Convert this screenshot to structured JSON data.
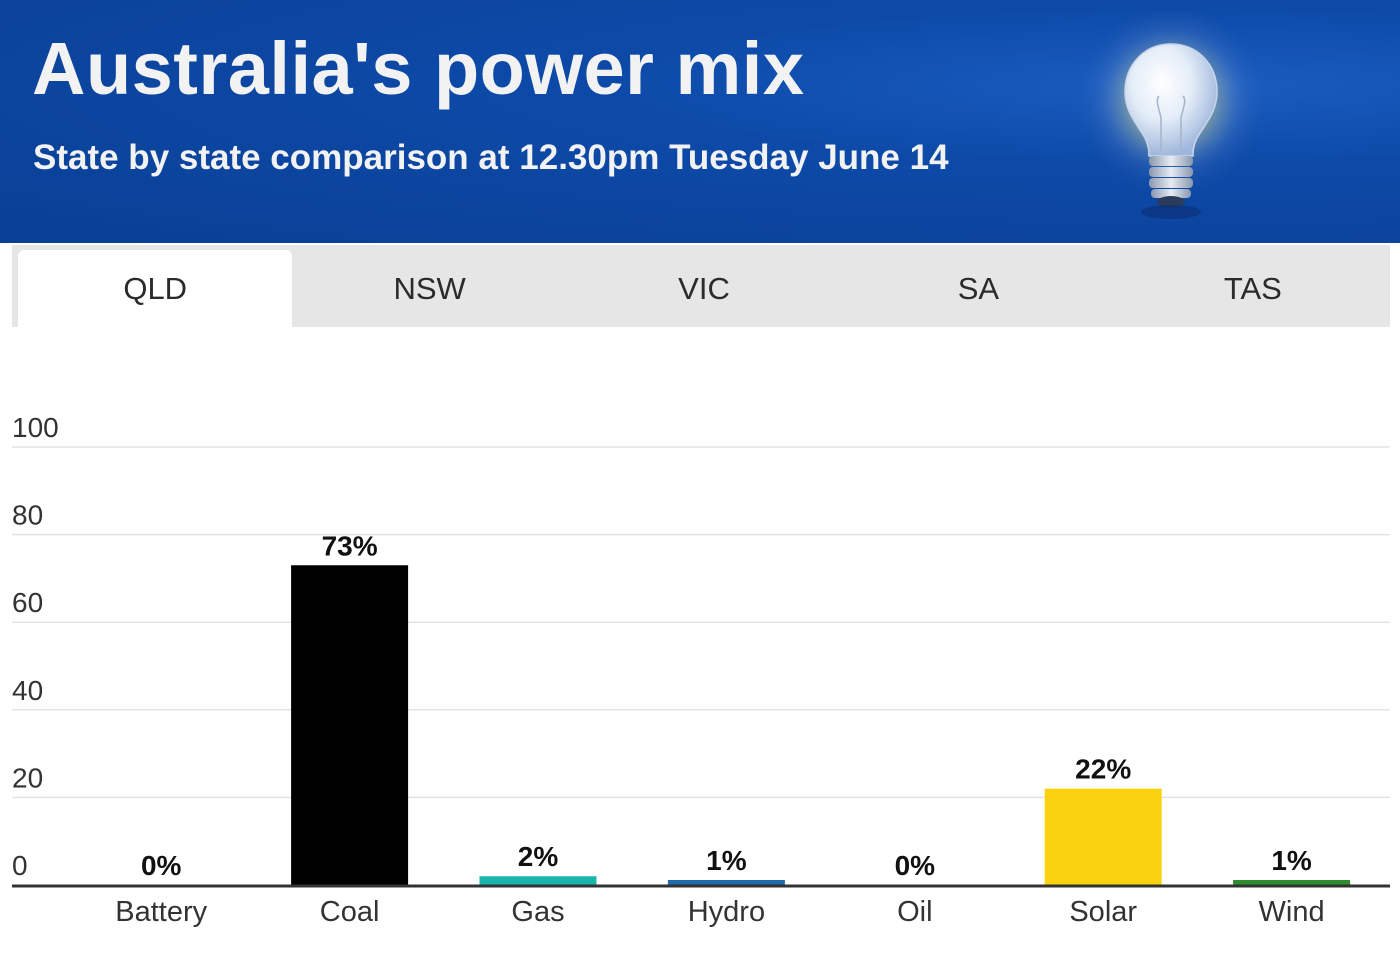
{
  "header": {
    "title": "Australia's power mix",
    "subtitle": "State by state comparison at 12.30pm Tuesday June 14",
    "icon": "lightbulb-icon"
  },
  "tabs": [
    {
      "label": "QLD",
      "active": true
    },
    {
      "label": "NSW",
      "active": false
    },
    {
      "label": "VIC",
      "active": false
    },
    {
      "label": "SA",
      "active": false
    },
    {
      "label": "TAS",
      "active": false
    }
  ],
  "chart_data": {
    "type": "bar",
    "categories": [
      "Battery",
      "Coal",
      "Gas",
      "Hydro",
      "Oil",
      "Solar",
      "Wind"
    ],
    "values": [
      0,
      73,
      2,
      1,
      0,
      22,
      1
    ],
    "data_labels": [
      "0%",
      "73%",
      "2%",
      "1%",
      "0%",
      "22%",
      "1%"
    ],
    "colors": [
      "#000000",
      "#000000",
      "#1ab5ae",
      "#1f6aad",
      "#000000",
      "#fbd20f",
      "#2e8b2e"
    ],
    "ylim": [
      0,
      100
    ],
    "yticks": [
      0,
      20,
      40,
      60,
      80,
      100
    ],
    "grid": true,
    "legend": "none",
    "xlabel": "",
    "ylabel": ""
  }
}
